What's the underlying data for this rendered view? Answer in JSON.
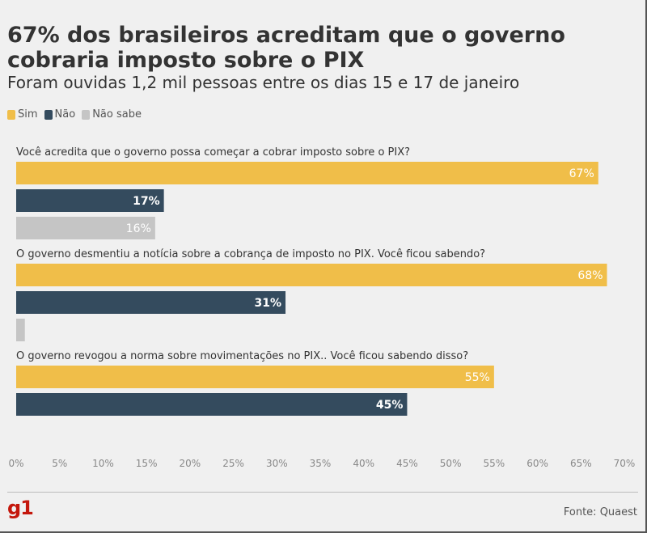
{
  "chart_data": {
    "type": "bar",
    "orientation": "horizontal",
    "title": "67% dos brasileiros acreditam que o governo cobraria imposto sobre o PIX",
    "subtitle": "Foram ouvidas 1,2 mil pessoas entre os dias 15 e 17 de janeiro",
    "legend": [
      {
        "label": "Sim",
        "color": "#f0be49"
      },
      {
        "label": "Não",
        "color": "#344b5e"
      },
      {
        "label": "Não sabe",
        "color": "#c5c5c5"
      }
    ],
    "legend_placement": "top-left",
    "categories": [
      "Você acredita que o governo possa começar a cobrar imposto sobre o PIX?",
      "O governo desmentiu a notícia sobre a cobrança de imposto no PIX. Você ficou sabendo?",
      "O governo revogou a norma sobre movimentações no PIX.. Você ficou sabendo disso?"
    ],
    "series": [
      {
        "name": "Sim",
        "values": [
          67,
          68,
          55
        ],
        "labels": [
          "67%",
          "68%",
          "55%"
        ]
      },
      {
        "name": "Não",
        "values": [
          17,
          31,
          45
        ],
        "labels": [
          "17%",
          "31%",
          "45%"
        ]
      },
      {
        "name": "Não sabe",
        "values": [
          16,
          1,
          null
        ],
        "labels": [
          "16%",
          "",
          ""
        ]
      }
    ],
    "x_ticks": [
      "0%",
      "5%",
      "10%",
      "15%",
      "20%",
      "25%",
      "30%",
      "35%",
      "40%",
      "45%",
      "50%",
      "55%",
      "60%",
      "65%",
      "70%"
    ],
    "xlim": [
      0,
      70
    ],
    "grid": false
  },
  "footer": {
    "logo": "g1",
    "source": "Fonte: Quaest"
  }
}
